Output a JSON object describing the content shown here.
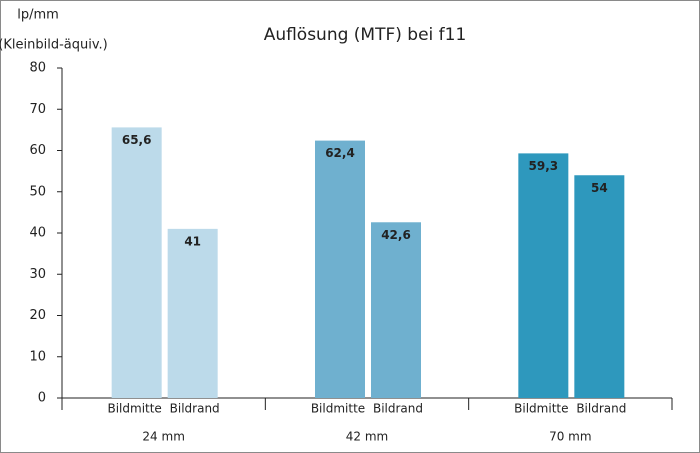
{
  "chart_data": {
    "type": "bar",
    "title": "Auflösung (MTF) bei f11",
    "y_label": [
      "lp/mm",
      "(Kleinbild-äquiv.)"
    ],
    "categories": [
      "24 mm",
      "42 mm",
      "70 mm"
    ],
    "group_colors": [
      "#bcdaea",
      "#6fb0cf",
      "#2e98bd"
    ],
    "series": [
      {
        "name": "Bildmitte",
        "values": [
          65.6,
          62.4,
          59.3
        ],
        "value_labels": [
          "65,6",
          "62,4",
          "59,3"
        ]
      },
      {
        "name": "Bildrand",
        "values": [
          41,
          42.6,
          54
        ],
        "value_labels": [
          "41",
          "42,6",
          "54"
        ]
      }
    ],
    "ylim": [
      0,
      80
    ],
    "yticks": [
      0,
      10,
      20,
      30,
      40,
      50,
      60,
      70,
      80
    ]
  }
}
